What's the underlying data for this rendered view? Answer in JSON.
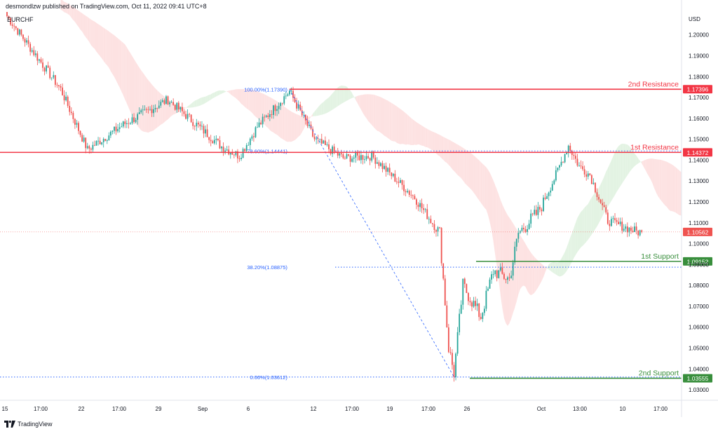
{
  "header": {
    "publisher": "desmondlzw published on TradingView.com, Oct 11, 2022 09:41 UTC+8",
    "symbol": "EURCHF"
  },
  "footer": {
    "brand": "TradingView",
    "logo_icon": "tradingview-logo-icon"
  },
  "colors": {
    "up": "#26a69a",
    "down": "#ef5350",
    "resistance": "#f23645",
    "support": "#388e3c",
    "fib": "#2962ff",
    "cloud_bear": "#fde2e2",
    "cloud_bull": "#e3f3e3"
  },
  "chart_data": {
    "type": "candlestick",
    "currency": "USD",
    "ylim": [
      1.025,
      1.212
    ],
    "y_ticks": [
      1.2,
      1.19,
      1.18,
      1.17,
      1.16,
      1.15,
      1.14,
      1.13,
      1.12,
      1.11,
      1.1,
      1.09,
      1.08,
      1.07,
      1.06,
      1.05,
      1.04,
      1.03
    ],
    "x_ticks": [
      "15",
      "17:00",
      "22",
      "17:00",
      "29",
      "Sep",
      "6",
      "12",
      "17:00",
      "19",
      "17:00",
      "26",
      "Oct",
      "13:00",
      "10",
      "17:00"
    ],
    "current_price": 1.10562,
    "levels": [
      {
        "label": "2nd Resistance",
        "price": 1.17396,
        "kind": "resistance"
      },
      {
        "label": "1st Resistance",
        "price": 1.14372,
        "kind": "resistance"
      },
      {
        "label": "1st Support",
        "price": 1.09152,
        "kind": "support"
      },
      {
        "label": "2nd Support",
        "price": 1.03555,
        "kind": "support"
      }
    ],
    "fibonacci": [
      {
        "label": "100.00%(1.17390)",
        "price": 1.1739
      },
      {
        "label": "78.60%(1.14441)",
        "price": 1.14441
      },
      {
        "label": "38.20%(1.08875)",
        "price": 1.08875
      },
      {
        "label": "0.00%(1.03612)",
        "price": 1.03612
      }
    ],
    "key_points": [
      {
        "bar": 0,
        "price": 1.209
      },
      {
        "bar": 30,
        "price": 1.174
      },
      {
        "bar": 45,
        "price": 1.145
      },
      {
        "bar": 65,
        "price": 1.157
      },
      {
        "bar": 90,
        "price": 1.169
      },
      {
        "bar": 120,
        "price": 1.1465
      },
      {
        "bar": 130,
        "price": 1.142
      },
      {
        "bar": 140,
        "price": 1.156
      },
      {
        "bar": 158,
        "price": 1.173
      },
      {
        "bar": 172,
        "price": 1.15
      },
      {
        "bar": 188,
        "price": 1.141
      },
      {
        "bar": 204,
        "price": 1.142
      },
      {
        "bar": 228,
        "price": 1.122
      },
      {
        "bar": 242,
        "price": 1.105
      },
      {
        "bar": 247,
        "price": 1.05
      },
      {
        "bar": 250,
        "price": 1.038
      },
      {
        "bar": 255,
        "price": 1.08
      },
      {
        "bar": 265,
        "price": 1.065
      },
      {
        "bar": 272,
        "price": 1.087
      },
      {
        "bar": 281,
        "price": 1.083
      },
      {
        "bar": 286,
        "price": 1.105
      },
      {
        "bar": 297,
        "price": 1.115
      },
      {
        "bar": 306,
        "price": 1.131
      },
      {
        "bar": 314,
        "price": 1.147
      },
      {
        "bar": 320,
        "price": 1.137
      },
      {
        "bar": 326,
        "price": 1.133
      },
      {
        "bar": 336,
        "price": 1.111
      },
      {
        "bar": 345,
        "price": 1.108
      },
      {
        "bar": 353,
        "price": 1.1056
      }
    ]
  }
}
